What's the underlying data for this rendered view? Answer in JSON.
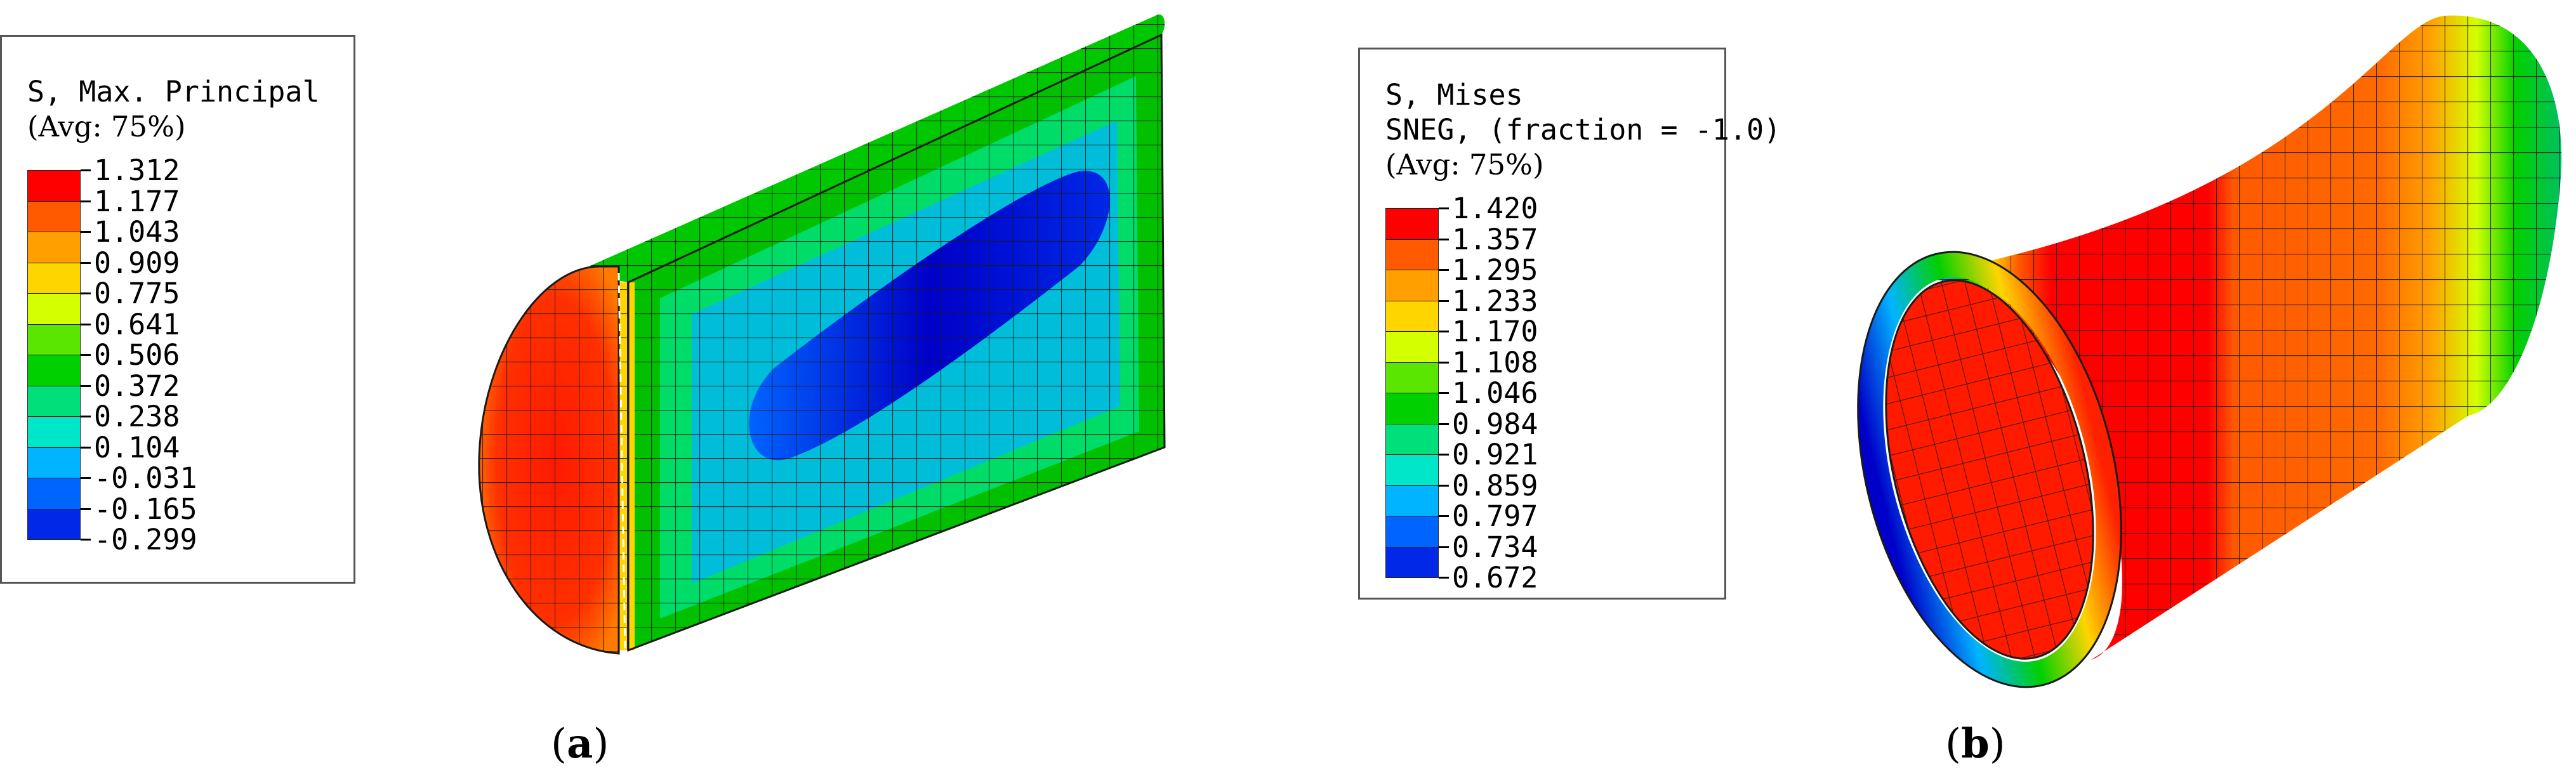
{
  "panel_a": {
    "legend": {
      "title": "S, Max. Principal",
      "avg": "(Avg: 75%)",
      "values": [
        "1.312",
        "1.177",
        "1.043",
        "0.909",
        "0.775",
        "0.641",
        "0.506",
        "0.372",
        "0.238",
        "0.104",
        "-0.031",
        "-0.165",
        "-0.299"
      ]
    },
    "caption_open": "(",
    "caption_letter": "a",
    "caption_close": ")"
  },
  "panel_b": {
    "legend": {
      "title": "S, Mises",
      "subtitle": "SNEG, (fraction = -1.0)",
      "avg": "(Avg: 75%)",
      "values": [
        "1.420",
        "1.357",
        "1.295",
        "1.233",
        "1.170",
        "1.108",
        "1.046",
        "0.984",
        "0.921",
        "0.859",
        "0.797",
        "0.734",
        "0.672"
      ]
    },
    "caption_open": "(",
    "caption_letter": "b",
    "caption_close": ")"
  },
  "colors": {
    "scale": [
      "#ff0000",
      "#ff5a00",
      "#ffa000",
      "#ffd500",
      "#d4ff00",
      "#5ae600",
      "#00d000",
      "#00e07a",
      "#00e6c8",
      "#00b4ff",
      "#0064ff",
      "#0028e6",
      "#0000c8"
    ]
  }
}
